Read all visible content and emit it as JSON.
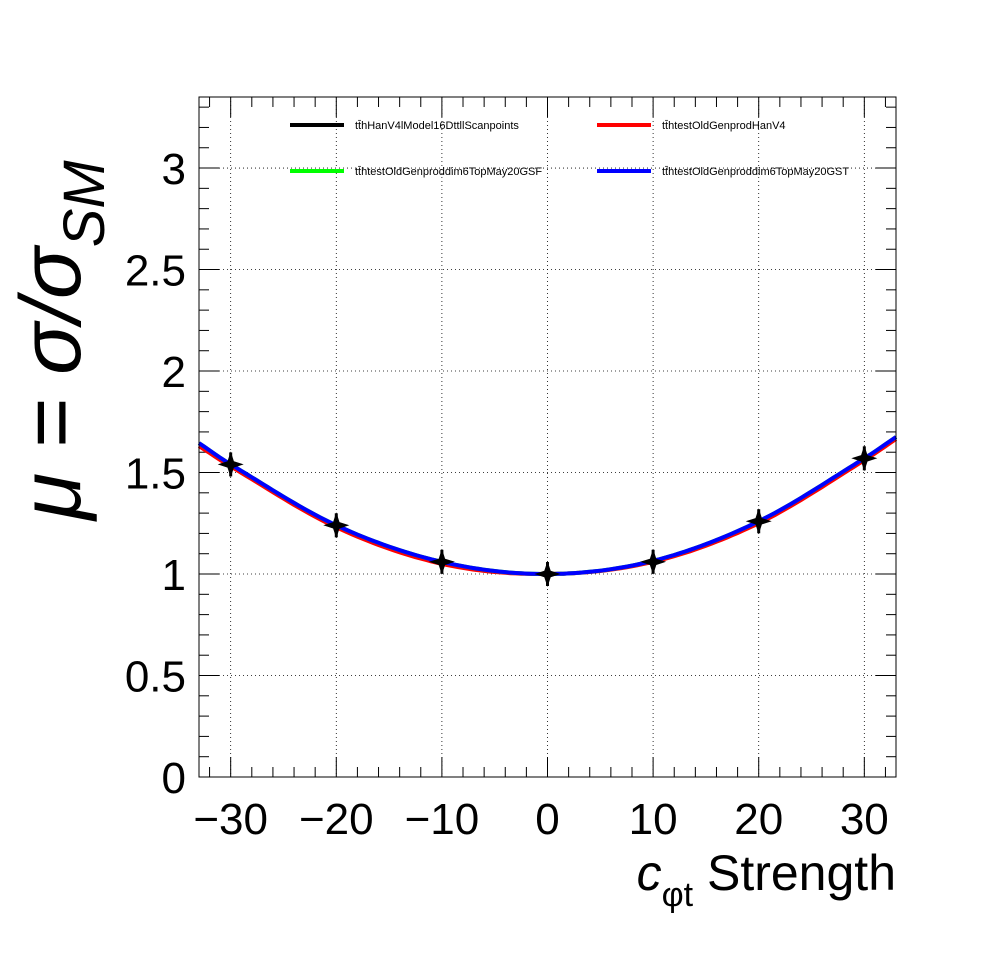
{
  "chart_data": {
    "type": "line",
    "ylabel": "μ = σ/σSM",
    "ylabel_main": "μ = σ/σ",
    "ylabel_sub": "SM",
    "xlabel_main": "c",
    "xlabel_sub": "φt",
    "xlabel_rest": " Strength",
    "xlim": [
      -33,
      33
    ],
    "ylim": [
      0,
      3.35
    ],
    "x_ticks": [
      -30,
      -20,
      -10,
      0,
      10,
      20,
      30
    ],
    "x_tick_labels": [
      "−30",
      "−20",
      "−10",
      "0",
      "10",
      "20",
      "30"
    ],
    "y_ticks": [
      0,
      0.5,
      1,
      1.5,
      2,
      2.5,
      3
    ],
    "y_tick_labels": [
      "0",
      "0.5",
      "1",
      "1.5",
      "2",
      "2.5",
      "3"
    ],
    "grid": true,
    "legend_position": "top",
    "series": [
      {
        "name": "tt̄hHanV4lModel16DttllScanpoints",
        "color": "#000000",
        "style": "markers",
        "x": [
          -30,
          -20,
          -10,
          0,
          10,
          20,
          30
        ],
        "y": [
          1.54,
          1.24,
          1.06,
          1.0,
          1.06,
          1.26,
          1.57
        ]
      },
      {
        "name": "tt̄htestOldGenprodHanV4",
        "color": "#ff0000",
        "style": "curve",
        "x": [
          -33,
          -30,
          -20,
          -10,
          0,
          10,
          20,
          30,
          33
        ],
        "y": [
          1.63,
          1.53,
          1.23,
          1.05,
          1.0,
          1.06,
          1.25,
          1.56,
          1.665
        ]
      },
      {
        "name": "tt̄htestOldGenproddim6TopMay20GSF",
        "color": "#00ff00",
        "style": "curve",
        "x": [
          -33,
          -30,
          -20,
          -10,
          0,
          10,
          20,
          30,
          33
        ],
        "y": [
          1.645,
          1.54,
          1.24,
          1.06,
          1.0,
          1.065,
          1.26,
          1.57,
          1.675
        ]
      },
      {
        "name": "tt̄htestOldGenproddim6TopMay20GST",
        "color": "#0000ff",
        "style": "curve",
        "x": [
          -33,
          -30,
          -20,
          -10,
          0,
          10,
          20,
          30,
          33
        ],
        "y": [
          1.645,
          1.54,
          1.24,
          1.06,
          1.0,
          1.065,
          1.26,
          1.57,
          1.675
        ]
      }
    ]
  }
}
